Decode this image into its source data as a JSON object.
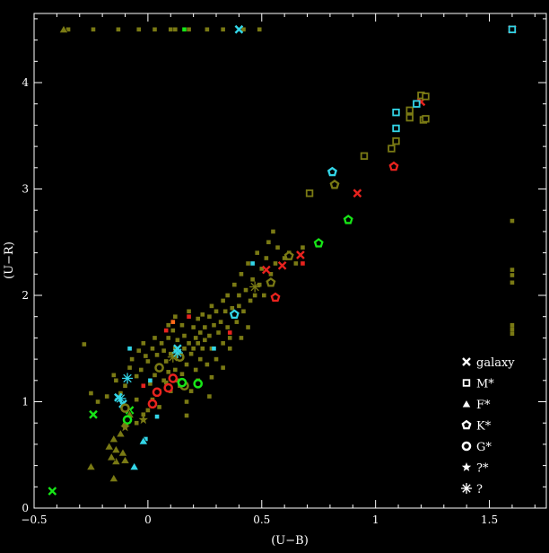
{
  "chart_data": {
    "type": "scatter",
    "title": "",
    "xlabel": "(U−B)",
    "ylabel": "(U−R)",
    "xlim": [
      -0.5,
      1.75
    ],
    "ylim": [
      0,
      4.65
    ],
    "xticks": [
      {
        "value": -0.5,
        "label": "−0.5"
      },
      {
        "value": 0,
        "label": "0"
      },
      {
        "value": 0.5,
        "label": "0.5"
      },
      {
        "value": 1,
        "label": "1"
      },
      {
        "value": 1.5,
        "label": "1.5"
      }
    ],
    "yticks": [
      {
        "value": 0,
        "label": "0"
      },
      {
        "value": 1,
        "label": "1"
      },
      {
        "value": 2,
        "label": "2"
      },
      {
        "value": 3,
        "label": "3"
      },
      {
        "value": 4,
        "label": "4"
      }
    ],
    "grid": false,
    "legend_position": "bottom-right",
    "legend": [
      {
        "label": "galaxy",
        "marker": "cross"
      },
      {
        "label": "M*",
        "marker": "square"
      },
      {
        "label": "F*",
        "marker": "triangle"
      },
      {
        "label": "K*",
        "marker": "pentagon"
      },
      {
        "label": "G*",
        "marker": "circle"
      },
      {
        "label": "?*",
        "marker": "star"
      },
      {
        "label": "?",
        "marker": "asterisk"
      }
    ],
    "colors": {
      "olive": "#7a7a14",
      "cyan": "#33d6e8",
      "red": "#e8231e",
      "green": "#17e617",
      "orange": "#ff6a1a",
      "background": "#000000",
      "axis": "#ffffff"
    },
    "series": [
      {
        "marker": "smallsquare",
        "color": "olive",
        "points": [
          [
            -0.35,
            4.5
          ],
          [
            -0.24,
            4.5
          ],
          [
            -0.13,
            4.5
          ],
          [
            -0.04,
            4.5
          ],
          [
            0.03,
            4.5
          ],
          [
            0.1,
            4.5
          ],
          [
            0.12,
            4.5
          ],
          [
            0.18,
            4.5
          ],
          [
            0.26,
            4.5
          ],
          [
            0.33,
            4.5
          ],
          [
            0.42,
            4.5
          ],
          [
            0.49,
            4.5
          ],
          [
            -0.28,
            1.54
          ],
          [
            -0.25,
            1.08
          ],
          [
            -0.22,
            1.0
          ],
          [
            -0.18,
            1.05
          ],
          [
            -0.15,
            1.25
          ],
          [
            -0.14,
            1.2
          ],
          [
            -0.12,
            1.08
          ],
          [
            -0.1,
            1.15
          ],
          [
            -0.08,
            1.32
          ],
          [
            -0.07,
            1.4
          ],
          [
            -0.05,
            1.24
          ],
          [
            -0.05,
            1.02
          ],
          [
            -0.04,
            1.48
          ],
          [
            -0.03,
            1.3
          ],
          [
            -0.02,
            1.55
          ],
          [
            -0.01,
            1.43
          ],
          [
            0.0,
            1.38
          ],
          [
            0.01,
            1.17
          ],
          [
            0.02,
            1.5
          ],
          [
            0.03,
            1.6
          ],
          [
            0.03,
            1.25
          ],
          [
            0.04,
            1.44
          ],
          [
            0.05,
            1.33
          ],
          [
            0.05,
            1.1
          ],
          [
            0.06,
            1.55
          ],
          [
            0.07,
            1.48
          ],
          [
            0.07,
            1.2
          ],
          [
            0.08,
            1.38
          ],
          [
            0.09,
            1.6
          ],
          [
            0.09,
            1.28
          ],
          [
            0.1,
            1.45
          ],
          [
            0.1,
            1.1
          ],
          [
            0.11,
            1.67
          ],
          [
            0.12,
            1.5
          ],
          [
            0.12,
            1.3
          ],
          [
            0.13,
            1.58
          ],
          [
            0.13,
            1.2
          ],
          [
            0.14,
            1.4
          ],
          [
            0.15,
            1.72
          ],
          [
            0.15,
            1.26
          ],
          [
            0.16,
            1.5
          ],
          [
            0.16,
            1.62
          ],
          [
            0.17,
            1.35
          ],
          [
            0.17,
            1.0
          ],
          [
            0.18,
            1.55
          ],
          [
            0.18,
            1.85
          ],
          [
            0.19,
            1.45
          ],
          [
            0.19,
            1.1
          ],
          [
            0.2,
            1.7
          ],
          [
            0.2,
            1.5
          ],
          [
            0.21,
            1.6
          ],
          [
            0.21,
            1.3
          ],
          [
            0.22,
            1.78
          ],
          [
            0.22,
            1.55
          ],
          [
            0.23,
            1.65
          ],
          [
            0.23,
            1.4
          ],
          [
            0.24,
            1.82
          ],
          [
            0.24,
            1.5
          ],
          [
            0.25,
            1.7
          ],
          [
            0.25,
            1.58
          ],
          [
            0.26,
            1.35
          ],
          [
            0.27,
            1.8
          ],
          [
            0.27,
            1.62
          ],
          [
            0.28,
            1.5
          ],
          [
            0.28,
            1.9
          ],
          [
            0.29,
            1.72
          ],
          [
            0.3,
            1.4
          ],
          [
            0.3,
            1.85
          ],
          [
            0.31,
            1.65
          ],
          [
            0.32,
            1.75
          ],
          [
            0.33,
            1.55
          ],
          [
            0.33,
            1.95
          ],
          [
            0.34,
            1.85
          ],
          [
            0.35,
            2.0
          ],
          [
            0.35,
            1.7
          ],
          [
            0.36,
            1.6
          ],
          [
            0.37,
            1.88
          ],
          [
            0.38,
            1.8
          ],
          [
            0.38,
            2.1
          ],
          [
            0.39,
            1.75
          ],
          [
            0.4,
            2.0
          ],
          [
            0.4,
            1.9
          ],
          [
            0.41,
            2.2
          ],
          [
            0.42,
            1.85
          ],
          [
            0.43,
            2.05
          ],
          [
            0.44,
            2.3
          ],
          [
            0.45,
            1.95
          ],
          [
            0.46,
            2.15
          ],
          [
            0.47,
            2.0
          ],
          [
            0.48,
            2.4
          ],
          [
            0.49,
            2.1
          ],
          [
            0.5,
            2.25
          ],
          [
            0.51,
            2.0
          ],
          [
            0.52,
            2.35
          ],
          [
            0.53,
            2.5
          ],
          [
            0.54,
            2.2
          ],
          [
            0.55,
            2.6
          ],
          [
            0.56,
            2.3
          ],
          [
            0.57,
            2.45
          ],
          [
            0.6,
            2.35
          ],
          [
            0.62,
            2.4
          ],
          [
            0.65,
            2.3
          ],
          [
            0.68,
            2.45
          ],
          [
            -0.05,
            0.8
          ],
          [
            -0.02,
            0.88
          ],
          [
            0.0,
            0.92
          ],
          [
            0.02,
            1.02
          ],
          [
            0.05,
            0.95
          ],
          [
            0.08,
            1.18
          ],
          [
            0.14,
            1.15
          ],
          [
            0.17,
            0.87
          ],
          [
            0.28,
            1.23
          ],
          [
            0.33,
            1.32
          ],
          [
            0.36,
            1.5
          ],
          [
            0.41,
            1.6
          ],
          [
            0.44,
            1.7
          ],
          [
            0.27,
            1.05
          ],
          [
            0.22,
            1.2
          ],
          [
            0.12,
            1.8
          ],
          [
            0.09,
            1.72
          ],
          [
            1.6,
            2.7
          ],
          [
            1.6,
            2.24
          ],
          [
            1.6,
            2.19
          ],
          [
            1.6,
            2.12
          ],
          [
            1.6,
            1.72
          ],
          [
            1.6,
            1.68
          ],
          [
            1.6,
            1.64
          ]
        ]
      },
      {
        "marker": "smallsquare",
        "color": "cyan",
        "points": [
          [
            -0.08,
            1.5
          ],
          [
            0.01,
            1.2
          ],
          [
            0.04,
            0.86
          ],
          [
            -0.01,
            0.65
          ],
          [
            0.46,
            2.3
          ],
          [
            0.29,
            1.5
          ]
        ]
      },
      {
        "marker": "smallsquare",
        "color": "red",
        "points": [
          [
            0.08,
            1.67
          ],
          [
            0.18,
            1.8
          ],
          [
            0.36,
            1.65
          ],
          [
            0.68,
            2.3
          ],
          [
            -0.02,
            1.15
          ]
        ]
      },
      {
        "marker": "smallsquare",
        "color": "green",
        "points": [
          [
            0.16,
            4.5
          ]
        ]
      },
      {
        "marker": "smallsquare",
        "color": "orange",
        "points": [
          [
            0.11,
            1.75
          ]
        ]
      },
      {
        "name": "galaxy",
        "marker": "cross",
        "color": "cyan",
        "points": [
          [
            -0.13,
            1.04
          ],
          [
            -0.11,
            0.98
          ],
          [
            0.13,
            1.5
          ],
          [
            0.4,
            4.5
          ]
        ]
      },
      {
        "name": "galaxy",
        "marker": "cross",
        "color": "green",
        "points": [
          [
            -0.42,
            0.16
          ],
          [
            -0.24,
            0.88
          ],
          [
            -0.08,
            0.92
          ]
        ]
      },
      {
        "name": "galaxy",
        "marker": "cross",
        "color": "red",
        "points": [
          [
            0.52,
            2.24
          ],
          [
            0.59,
            2.28
          ],
          [
            0.67,
            2.38
          ],
          [
            0.92,
            2.96
          ],
          [
            1.2,
            3.82
          ],
          [
            1.6,
            4.5
          ]
        ]
      },
      {
        "name": "M*",
        "marker": "square",
        "color": "olive",
        "points": [
          [
            0.71,
            2.96
          ],
          [
            0.95,
            3.31
          ],
          [
            1.07,
            3.38
          ],
          [
            1.09,
            3.45
          ],
          [
            1.15,
            3.67
          ],
          [
            1.15,
            3.74
          ],
          [
            1.2,
            3.88
          ],
          [
            1.22,
            3.87
          ],
          [
            1.21,
            3.65
          ],
          [
            1.22,
            3.66
          ]
        ]
      },
      {
        "name": "M*",
        "marker": "square",
        "color": "cyan",
        "points": [
          [
            1.09,
            3.72
          ],
          [
            1.09,
            3.57
          ],
          [
            1.18,
            3.8
          ],
          [
            1.6,
            4.5
          ]
        ]
      },
      {
        "name": "F*",
        "marker": "triangle",
        "color": "olive",
        "points": [
          [
            -0.37,
            4.5
          ],
          [
            -0.25,
            0.39
          ],
          [
            -0.17,
            0.58
          ],
          [
            -0.15,
            0.65
          ],
          [
            -0.14,
            0.55
          ],
          [
            -0.14,
            0.44
          ],
          [
            -0.16,
            0.48
          ],
          [
            -0.15,
            0.28
          ],
          [
            -0.12,
            0.7
          ],
          [
            -0.11,
            0.52
          ],
          [
            -0.1,
            0.45
          ],
          [
            -0.1,
            0.8
          ],
          [
            -0.08,
            0.88
          ]
        ]
      },
      {
        "name": "F*",
        "marker": "triangle",
        "color": "cyan",
        "points": [
          [
            -0.06,
            0.39
          ],
          [
            -0.02,
            0.63
          ]
        ]
      },
      {
        "name": "K*",
        "marker": "pentagon",
        "color": "olive",
        "points": [
          [
            0.54,
            2.12
          ],
          [
            0.62,
            2.37
          ],
          [
            0.82,
            3.04
          ]
        ]
      },
      {
        "name": "K*",
        "marker": "pentagon",
        "color": "green",
        "points": [
          [
            0.75,
            2.49
          ],
          [
            0.88,
            2.71
          ]
        ]
      },
      {
        "name": "K*",
        "marker": "pentagon",
        "color": "red",
        "points": [
          [
            0.56,
            1.98
          ],
          [
            1.08,
            3.21
          ]
        ]
      },
      {
        "name": "K*",
        "marker": "pentagon",
        "color": "cyan",
        "points": [
          [
            0.81,
            3.16
          ],
          [
            0.38,
            1.82
          ]
        ]
      },
      {
        "name": "G*",
        "marker": "circle",
        "color": "olive",
        "points": [
          [
            -0.1,
            0.94
          ],
          [
            0.05,
            1.32
          ],
          [
            0.14,
            1.42
          ],
          [
            0.16,
            1.15
          ]
        ]
      },
      {
        "name": "G*",
        "marker": "circle",
        "color": "green",
        "points": [
          [
            -0.09,
            0.83
          ],
          [
            0.15,
            1.18
          ],
          [
            0.22,
            1.17
          ]
        ]
      },
      {
        "name": "G*",
        "marker": "circle",
        "color": "red",
        "points": [
          [
            0.02,
            0.98
          ],
          [
            0.04,
            1.09
          ],
          [
            0.09,
            1.13
          ],
          [
            0.11,
            1.22
          ]
        ]
      },
      {
        "name": "?*",
        "marker": "star",
        "color": "olive",
        "points": [
          [
            -0.02,
            0.83
          ],
          [
            -0.1,
            0.76
          ]
        ]
      },
      {
        "name": "?",
        "marker": "asterisk",
        "color": "olive",
        "points": [
          [
            0.47,
            2.08
          ],
          [
            0.11,
            1.42
          ]
        ]
      },
      {
        "name": "?",
        "marker": "asterisk",
        "color": "cyan",
        "points": [
          [
            -0.09,
            1.22
          ],
          [
            0.13,
            1.46
          ],
          [
            -0.12,
            1.03
          ]
        ]
      }
    ]
  }
}
